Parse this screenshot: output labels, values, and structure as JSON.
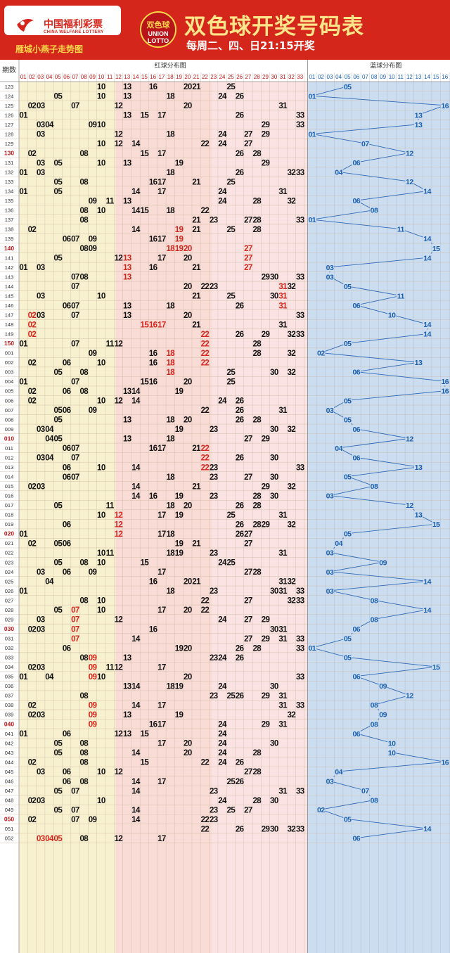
{
  "header": {
    "logo_cn": "中国福利彩票",
    "logo_en": "CHINA WELFARE LOTTERY",
    "sub_title": "雁城小燕子走势图",
    "badge_text": "双色球",
    "badge_en_1": "UNION",
    "badge_en_2": "LOTTO",
    "title": "双色球开奖号码表",
    "schedule": "每周二、四、日21:15开奖"
  },
  "colors": {
    "header_bg": "#d5261c",
    "zone1_bg": "#f8f1cf",
    "zone2_bg": "#f9dcd6",
    "zone3_bg": "#fae3e2",
    "blue_bg": "#cdddf0",
    "red_highlight": "#d5261c",
    "blue_number": "#1a5fae",
    "period_red": "#c0171a"
  },
  "chart_data": {
    "type": "table",
    "period_header": "期数",
    "red_section_label": "红球分布图",
    "blue_section_label": "蓝球分布图",
    "red_columns": [
      "01",
      "02",
      "03",
      "04",
      "05",
      "06",
      "07",
      "08",
      "09",
      "10",
      "11",
      "12",
      "13",
      "14",
      "15",
      "16",
      "17",
      "18",
      "19",
      "20",
      "21",
      "22",
      "23",
      "24",
      "25",
      "26",
      "27",
      "28",
      "29",
      "30",
      "31",
      "32",
      "33"
    ],
    "blue_columns": [
      "01",
      "02",
      "03",
      "04",
      "05",
      "06",
      "07",
      "08",
      "09",
      "10",
      "11",
      "12",
      "13",
      "14",
      "15",
      "16"
    ],
    "rows": [
      {
        "p": "123",
        "red": [
          10,
          13,
          16,
          20,
          21,
          25
        ],
        "blue": 5
      },
      {
        "p": "124",
        "red": [
          5,
          10,
          13,
          18,
          24,
          26
        ],
        "blue": 1
      },
      {
        "p": "125",
        "red": [
          2,
          3,
          7,
          12,
          20,
          31
        ],
        "blue": 16
      },
      {
        "p": "126",
        "red": [
          1,
          13,
          15,
          17,
          26,
          33
        ],
        "blue": 13
      },
      {
        "p": "127",
        "red": [
          3,
          4,
          9,
          10,
          29,
          33
        ],
        "blue": 13
      },
      {
        "p": "128",
        "red": [
          3,
          12,
          18,
          24,
          27,
          29
        ],
        "blue": 1
      },
      {
        "p": "129",
        "red": [
          10,
          12,
          14,
          22,
          24,
          27
        ],
        "blue": 7
      },
      {
        "p": "130",
        "red": [
          2,
          8,
          15,
          17,
          26,
          28
        ],
        "blue": 12
      },
      {
        "p": "131",
        "red": [
          3,
          5,
          10,
          13,
          19,
          29
        ],
        "blue": 6
      },
      {
        "p": "132",
        "red": [
          1,
          3,
          18,
          26,
          32,
          33
        ],
        "blue": 4
      },
      {
        "p": "133",
        "red": [
          5,
          8,
          16,
          17,
          21,
          25
        ],
        "blue": 12
      },
      {
        "p": "134",
        "red": [
          1,
          5,
          14,
          17,
          24,
          31
        ],
        "blue": 14
      },
      {
        "p": "135",
        "red": [
          9,
          11,
          13,
          24,
          28,
          32
        ],
        "blue": 6
      },
      {
        "p": "136",
        "red": [
          8,
          10,
          14,
          15,
          18,
          22
        ],
        "blue": 8
      },
      {
        "p": "137",
        "red": [
          8,
          21,
          23,
          27,
          28,
          33
        ],
        "blue": 1
      },
      {
        "p": "138",
        "red": [
          2,
          14,
          19,
          21,
          25,
          28
        ],
        "blue": 11
      },
      {
        "p": "139",
        "red": [
          6,
          7,
          9,
          16,
          17,
          19
        ],
        "blue": 14
      },
      {
        "p": "140",
        "red": [
          8,
          9,
          18,
          19,
          20,
          27
        ],
        "blue": 15
      },
      {
        "p": "141",
        "red": [
          5,
          12,
          13,
          17,
          20,
          27
        ],
        "blue": 14
      },
      {
        "p": "142",
        "red": [
          1,
          3,
          13,
          16,
          21,
          27
        ],
        "blue": 3
      },
      {
        "p": "143",
        "red": [
          7,
          8,
          13,
          29,
          30,
          33
        ],
        "blue": 3
      },
      {
        "p": "144",
        "red": [
          7,
          20,
          22,
          23,
          31,
          32
        ],
        "blue": 5
      },
      {
        "p": "145",
        "red": [
          3,
          10,
          21,
          25,
          30,
          31
        ],
        "blue": 11
      },
      {
        "p": "146",
        "red": [
          6,
          7,
          13,
          18,
          26,
          31
        ],
        "blue": 6
      },
      {
        "p": "147",
        "red": [
          2,
          3,
          7,
          13,
          20,
          33
        ],
        "blue": 10
      },
      {
        "p": "148",
        "red": [
          2,
          15,
          16,
          17,
          21,
          31
        ],
        "blue": 14
      },
      {
        "p": "149",
        "red": [
          2,
          22,
          26,
          29,
          32,
          33
        ],
        "blue": 14
      },
      {
        "p": "150",
        "red": [
          1,
          7,
          11,
          12,
          22,
          28
        ],
        "blue": 5
      },
      {
        "p": "001",
        "red": [
          9,
          16,
          18,
          22,
          28,
          32
        ],
        "blue": 2
      },
      {
        "p": "002",
        "red": [
          2,
          6,
          10,
          16,
          18,
          22
        ],
        "blue": 13
      },
      {
        "p": "003",
        "red": [
          5,
          8,
          18,
          25,
          30,
          32
        ],
        "blue": 6
      },
      {
        "p": "004",
        "red": [
          1,
          7,
          15,
          16,
          20,
          25
        ],
        "blue": 16
      },
      {
        "p": "005",
        "red": [
          2,
          6,
          8,
          13,
          14,
          19
        ],
        "blue": 16
      },
      {
        "p": "006",
        "red": [
          2,
          10,
          12,
          14,
          24,
          26
        ],
        "blue": 5
      },
      {
        "p": "007",
        "red": [
          5,
          6,
          9,
          22,
          26,
          31
        ],
        "blue": 3
      },
      {
        "p": "008",
        "red": [
          5,
          13,
          18,
          20,
          26,
          28
        ],
        "blue": 5
      },
      {
        "p": "009",
        "red": [
          3,
          4,
          19,
          23,
          30,
          32
        ],
        "blue": 6
      },
      {
        "p": "010",
        "red": [
          4,
          5,
          13,
          18,
          27,
          29
        ],
        "blue": 12
      },
      {
        "p": "011",
        "red": [
          6,
          7,
          16,
          17,
          21,
          22
        ],
        "blue": 4
      },
      {
        "p": "012",
        "red": [
          3,
          4,
          7,
          22,
          26,
          30
        ],
        "blue": 6
      },
      {
        "p": "013",
        "red": [
          6,
          10,
          14,
          22,
          23,
          33
        ],
        "blue": 13
      },
      {
        "p": "014",
        "red": [
          6,
          7,
          18,
          23,
          27,
          30
        ],
        "blue": 5
      },
      {
        "p": "015",
        "red": [
          2,
          3,
          14,
          21,
          29,
          32
        ],
        "blue": 8
      },
      {
        "p": "016",
        "red": [
          14,
          16,
          19,
          23,
          28,
          30
        ],
        "blue": 3
      },
      {
        "p": "017",
        "red": [
          5,
          11,
          18,
          20,
          26,
          28
        ],
        "blue": 12
      },
      {
        "p": "018",
        "red": [
          10,
          12,
          17,
          19,
          25,
          31
        ],
        "blue": 13
      },
      {
        "p": "019",
        "red": [
          6,
          12,
          26,
          28,
          29,
          32
        ],
        "blue": 15
      },
      {
        "p": "020",
        "red": [
          1,
          12,
          17,
          18,
          26,
          27
        ],
        "blue": 5
      },
      {
        "p": "021",
        "red": [
          2,
          5,
          6,
          19,
          21,
          27
        ],
        "blue": 4
      },
      {
        "p": "022",
        "red": [
          10,
          11,
          18,
          19,
          23,
          31
        ],
        "blue": 3
      },
      {
        "p": "023",
        "red": [
          5,
          8,
          10,
          15,
          24,
          25
        ],
        "blue": 9
      },
      {
        "p": "024",
        "red": [
          3,
          6,
          9,
          17,
          27,
          28
        ],
        "blue": 3
      },
      {
        "p": "025",
        "red": [
          4,
          16,
          20,
          21,
          31,
          32
        ],
        "blue": 14
      },
      {
        "p": "026",
        "red": [
          1,
          18,
          23,
          30,
          31,
          33
        ],
        "blue": 3
      },
      {
        "p": "027",
        "red": [
          8,
          10,
          22,
          27,
          32,
          33
        ],
        "blue": 8
      },
      {
        "p": "028",
        "red": [
          5,
          7,
          10,
          17,
          20,
          22
        ],
        "blue": 14
      },
      {
        "p": "029",
        "red": [
          3,
          7,
          12,
          24,
          27,
          29
        ],
        "blue": 8
      },
      {
        "p": "030",
        "red": [
          2,
          3,
          7,
          16,
          30,
          31
        ],
        "blue": 6
      },
      {
        "p": "031",
        "red": [
          7,
          14,
          27,
          29,
          31,
          33
        ],
        "blue": 5
      },
      {
        "p": "032",
        "red": [
          6,
          19,
          20,
          26,
          28,
          33
        ],
        "blue": 1
      },
      {
        "p": "033",
        "red": [
          8,
          9,
          13,
          23,
          24,
          26
        ],
        "blue": 5
      },
      {
        "p": "034",
        "red": [
          2,
          3,
          9,
          11,
          12,
          17
        ],
        "blue": 15
      },
      {
        "p": "035",
        "red": [
          1,
          4,
          9,
          10,
          20,
          33
        ],
        "blue": 6
      },
      {
        "p": "036",
        "red": [
          13,
          14,
          18,
          19,
          24,
          30
        ],
        "blue": 9
      },
      {
        "p": "037",
        "red": [
          8,
          23,
          25,
          26,
          29,
          31
        ],
        "blue": 12
      },
      {
        "p": "038",
        "red": [
          2,
          9,
          14,
          17,
          31,
          33
        ],
        "blue": 8
      },
      {
        "p": "039",
        "red": [
          2,
          3,
          9,
          13,
          19,
          32
        ],
        "blue": 9
      },
      {
        "p": "040",
        "red": [
          9,
          16,
          17,
          24,
          29,
          31
        ],
        "blue": 8
      },
      {
        "p": "041",
        "red": [
          1,
          6,
          12,
          13,
          15,
          24
        ],
        "blue": 6
      },
      {
        "p": "042",
        "red": [
          5,
          8,
          17,
          20,
          24,
          30
        ],
        "blue": 10
      },
      {
        "p": "043",
        "red": [
          5,
          8,
          14,
          20,
          24,
          28
        ],
        "blue": 10
      },
      {
        "p": "044",
        "red": [
          2,
          8,
          15,
          22,
          24,
          26
        ],
        "blue": 16
      },
      {
        "p": "045",
        "red": [
          3,
          6,
          10,
          12,
          27,
          28
        ],
        "blue": 4
      },
      {
        "p": "046",
        "red": [
          6,
          8,
          14,
          17,
          25,
          26
        ],
        "blue": 3
      },
      {
        "p": "047",
        "red": [
          5,
          7,
          14,
          23,
          31,
          33
        ],
        "blue": 7
      },
      {
        "p": "048",
        "red": [
          2,
          3,
          10,
          24,
          28,
          30
        ],
        "blue": 8
      },
      {
        "p": "049",
        "red": [
          5,
          7,
          14,
          23,
          25,
          27
        ],
        "blue": 2
      },
      {
        "p": "050",
        "red": [
          2,
          7,
          9,
          14,
          22,
          23
        ],
        "blue": 5
      },
      {
        "p": "051",
        "red": [
          22,
          26,
          29,
          30,
          32,
          33
        ],
        "blue": 14
      },
      {
        "p": "052",
        "red": [
          3,
          4,
          5,
          8,
          12,
          17
        ],
        "blue": 6
      }
    ],
    "red_marked": {
      "138": [
        19
      ],
      "139": [
        19
      ],
      "140": [
        18,
        19,
        20,
        27
      ],
      "141": [
        13,
        27
      ],
      "142": [
        13,
        27
      ],
      "143": [
        13
      ],
      "144": [
        31
      ],
      "145": [
        31
      ],
      "146": [
        31
      ],
      "147": [
        2
      ],
      "148": [
        2,
        15,
        16,
        17
      ],
      "149": [
        2,
        22
      ],
      "150": [
        22
      ],
      "001": [
        18,
        22
      ],
      "002": [
        18,
        22
      ],
      "003": [
        18
      ],
      "011": [
        22
      ],
      "012": [
        22
      ],
      "013": [
        22
      ],
      "018": [
        12
      ],
      "019": [
        12
      ],
      "020": [
        12
      ],
      "028": [
        7
      ],
      "029": [
        7
      ],
      "030": [
        7
      ],
      "031": [
        7
      ],
      "033": [
        9
      ],
      "034": [
        9
      ],
      "035": [
        9
      ],
      "038": [
        9
      ],
      "039": [
        9
      ],
      "040": [
        9
      ],
      "052": [
        3,
        4,
        5
      ]
    },
    "red_periods": [
      "130",
      "140",
      "150",
      "010",
      "020",
      "030",
      "040",
      "050"
    ]
  }
}
